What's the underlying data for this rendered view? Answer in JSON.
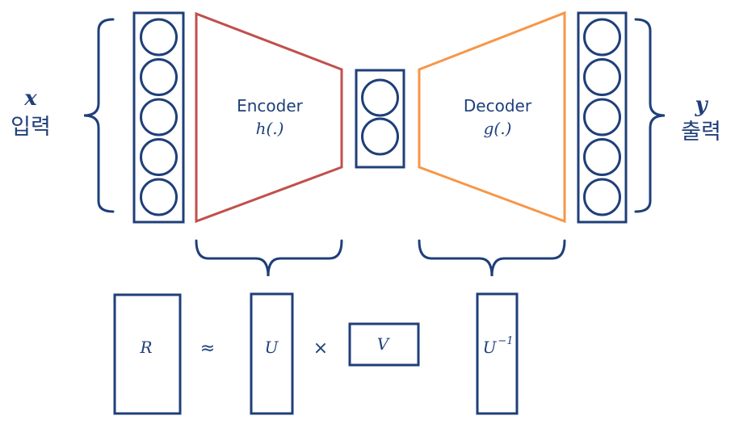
{
  "input": {
    "var": "x",
    "label": "입력"
  },
  "output": {
    "var": "y",
    "label": "출력"
  },
  "encoder": {
    "title": "Encoder",
    "func": "h(.)"
  },
  "decoder": {
    "title": "Decoder",
    "func": "g(.)"
  },
  "input_layer_nodes": 5,
  "latent_layer_nodes": 2,
  "output_layer_nodes": 5,
  "equation": {
    "R": "R",
    "approx": "≈",
    "U": "U",
    "times": "×",
    "V": "V",
    "U_inv_base": "U",
    "U_inv_exp": "−1"
  },
  "colors": {
    "blue": "#1f3f7a",
    "encoder": "#c0504d",
    "decoder": "#f79646"
  }
}
